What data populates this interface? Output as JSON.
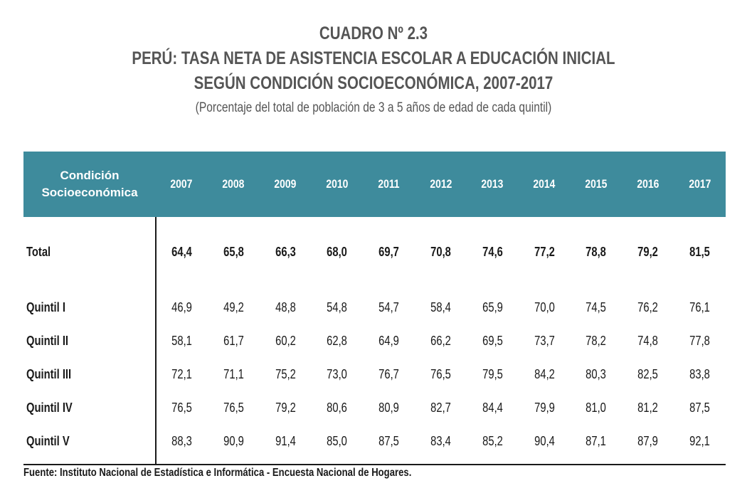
{
  "header": {
    "cuadro": "CUADRO Nº 2.3",
    "title_line1": "PERÚ: TASA NETA DE ASISTENCIA ESCOLAR A EDUCACIÓN INICIAL",
    "title_line2": "SEGÚN CONDICIÓN SOCIOECONÓMICA, 2007-2017",
    "subtitle": "(Porcentaje del total de población de 3 a 5 años de edad de cada quintil)"
  },
  "table": {
    "head_label_line1": "Condición",
    "head_label_line2": "Socioeconómica",
    "years": [
      "2007",
      "2008",
      "2009",
      "2010",
      "2011",
      "2012",
      "2013",
      "2014",
      "2015",
      "2016",
      "2017"
    ],
    "rows": [
      {
        "label": "Total",
        "values": [
          "64,4",
          "65,8",
          "66,3",
          "68,0",
          "69,7",
          "70,8",
          "74,6",
          "77,2",
          "78,8",
          "79,2",
          "81,5"
        ]
      },
      {
        "label": "Quintil I",
        "values": [
          "46,9",
          "49,2",
          "48,8",
          "54,8",
          "54,7",
          "58,4",
          "65,9",
          "70,0",
          "74,5",
          "76,2",
          "76,1"
        ]
      },
      {
        "label": "Quintil II",
        "values": [
          "58,1",
          "61,7",
          "60,2",
          "62,8",
          "64,9",
          "66,2",
          "69,5",
          "73,7",
          "78,2",
          "74,8",
          "77,8"
        ]
      },
      {
        "label": "Quintil III",
        "values": [
          "72,1",
          "71,1",
          "75,2",
          "73,0",
          "76,7",
          "76,5",
          "79,5",
          "84,2",
          "80,3",
          "82,5",
          "83,8"
        ]
      },
      {
        "label": "Quintil IV",
        "values": [
          "76,5",
          "76,5",
          "79,2",
          "80,6",
          "80,9",
          "82,7",
          "84,4",
          "79,9",
          "81,0",
          "81,2",
          "87,5"
        ]
      },
      {
        "label": "Quintil V",
        "values": [
          "88,3",
          "90,9",
          "91,4",
          "85,0",
          "87,5",
          "83,4",
          "85,2",
          "90,4",
          "87,1",
          "87,9",
          "92,1"
        ]
      }
    ]
  },
  "source": "Fuente: Instituto Nacional de Estadística e Informática - Encuesta Nacional  de Hogares.",
  "colors": {
    "header_bg": "#3e8b9c",
    "title_text": "#555555"
  }
}
